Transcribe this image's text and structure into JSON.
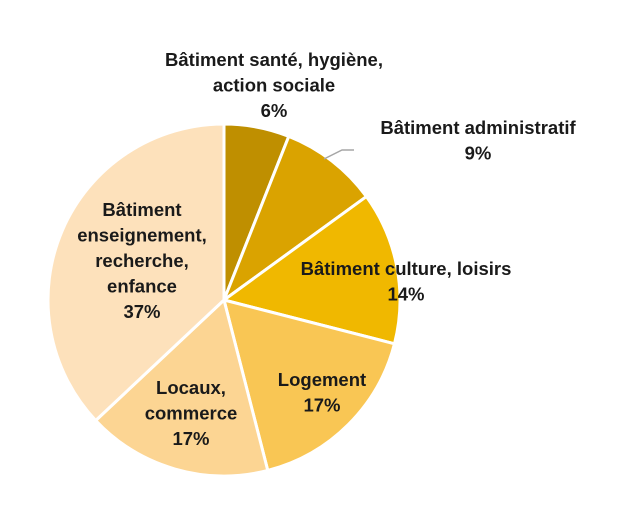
{
  "chart_data": {
    "type": "pie",
    "title": "",
    "start": "top",
    "direction": "clockwise",
    "slices": [
      {
        "label": [
          "Bâtiment santé, hygiène,",
          "action sociale"
        ],
        "value": 6,
        "value_label": "6%",
        "color": "#bf8f00"
      },
      {
        "label": [
          "Bâtiment administratif"
        ],
        "value": 9,
        "value_label": "9%",
        "color": "#daa300"
      },
      {
        "label": [
          "Bâtiment culture, loisirs"
        ],
        "value": 14,
        "value_label": "14%",
        "color": "#f0b800"
      },
      {
        "label": [
          "Logement"
        ],
        "value": 17,
        "value_label": "17%",
        "color": "#f9c654"
      },
      {
        "label": [
          "Locaux,",
          "commerce"
        ],
        "value": 17,
        "value_label": "17%",
        "color": "#fcd593"
      },
      {
        "label": [
          "Bâtiment",
          "enseignement,",
          "recherche,",
          "enfance"
        ],
        "value": 37,
        "value_label": "37%",
        "color": "#fde1bb"
      }
    ]
  }
}
